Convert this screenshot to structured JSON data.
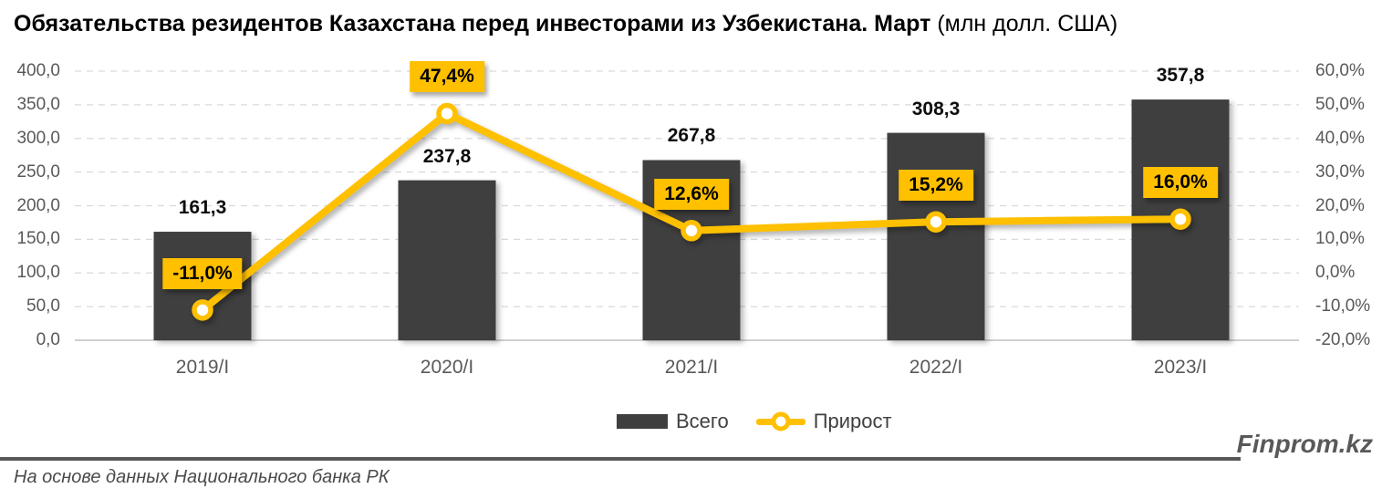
{
  "title": {
    "main": "Обязательства резидентов Казахстана перед инвесторами из Узбекистана. Март",
    "unit": "(млн долл. США)"
  },
  "chart_data": {
    "type": "combo_bar_line",
    "categories": [
      "2019/I",
      "2020/I",
      "2021/I",
      "2022/I",
      "2023/I"
    ],
    "series": [
      {
        "name": "Всего",
        "type": "bar",
        "axis": "left",
        "values": [
          161.3,
          237.8,
          267.8,
          308.3,
          357.8
        ],
        "labels": [
          "161,3",
          "237,8",
          "267,8",
          "308,3",
          "357,8"
        ]
      },
      {
        "name": "Прирост",
        "type": "line",
        "axis": "right",
        "values": [
          -11.0,
          47.4,
          12.6,
          15.2,
          16.0
        ],
        "labels": [
          "-11,0%",
          "47,4%",
          "12,6%",
          "15,2%",
          "16,0%"
        ]
      }
    ],
    "left_axis": {
      "min": 0,
      "max": 400,
      "step": 50,
      "tick_labels": [
        "0,0",
        "50,0",
        "100,0",
        "150,0",
        "200,0",
        "250,0",
        "300,0",
        "350,0",
        "400,0"
      ]
    },
    "right_axis": {
      "min": -20,
      "max": 60,
      "step": 10,
      "tick_labels": [
        "-20,0%",
        "-10,0%",
        "0,0%",
        "10,0%",
        "20,0%",
        "30,0%",
        "40,0%",
        "50,0%",
        "60,0%"
      ]
    },
    "grid": "horizontal dashed",
    "legend_position": "bottom center"
  },
  "legend": {
    "bars": "Всего",
    "line": "Прирост"
  },
  "footer": {
    "brand": "Finprom.kz",
    "source": "На основе данных Национального банка РК"
  },
  "colors": {
    "bar": "#3F3F3F",
    "line": "#FFC000",
    "marker_fill": "#FFFFFF",
    "label_box_bg": "#FFC000",
    "grid": "#D9D9D9",
    "axis_line": "#BFBFBF",
    "axis_text": "#595959",
    "title_text": "#000000",
    "brand_text": "#595959"
  }
}
